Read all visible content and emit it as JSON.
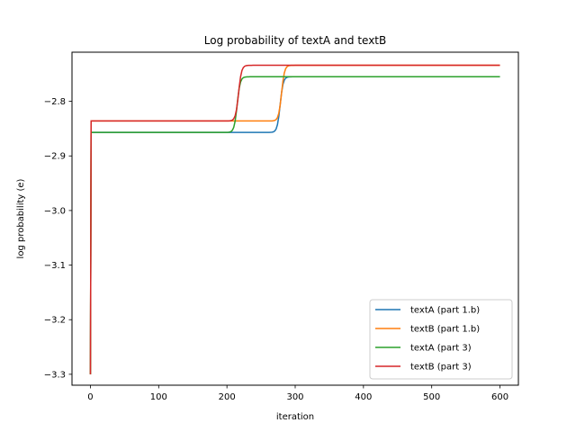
{
  "chart_data": {
    "type": "line",
    "title": "Log probability of textA and textB",
    "xlabel": "iteration",
    "ylabel": "log probability (e)",
    "xlim": [
      -27,
      627
    ],
    "ylim": [
      -3.32,
      -2.71
    ],
    "xticks": [
      0,
      100,
      200,
      300,
      400,
      500,
      600
    ],
    "yticks": [
      -3.3,
      -3.2,
      -3.1,
      -3.0,
      -2.9,
      -2.8
    ],
    "ytick_labels": [
      "−3.3",
      "−3.2",
      "−3.1",
      "−3.0",
      "−2.9",
      "−2.8"
    ],
    "grid": false,
    "legend_position": "lower-right",
    "series": [
      {
        "name": "textA (part 1.b)",
        "color": "#1f77b4",
        "start": -3.3,
        "plateau1": -2.857,
        "plateau2": -2.755,
        "step_at": 278
      },
      {
        "name": "textB (part 1.b)",
        "color": "#ff7f0e",
        "start": -3.3,
        "plateau1": -2.836,
        "plateau2": -2.734,
        "step_at": 280
      },
      {
        "name": "textA (part 3)",
        "color": "#2ca02c",
        "start": -3.3,
        "plateau1": -2.857,
        "plateau2": -2.755,
        "step_at": 215
      },
      {
        "name": "textB (part 3)",
        "color": "#d62728",
        "start": -3.3,
        "plateau1": -2.836,
        "plateau2": -2.734,
        "step_at": 217
      }
    ]
  }
}
